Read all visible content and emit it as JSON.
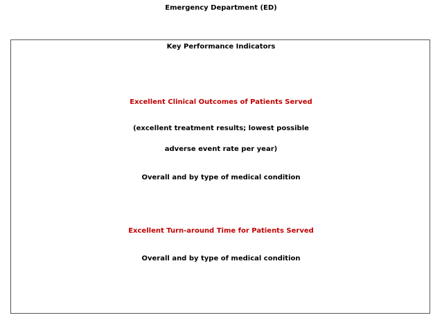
{
  "title": "Emergency Department (ED)",
  "box": {
    "heading": "Key Performance Indicators",
    "sections": [
      {
        "heading": "Excellent Clinical Outcomes of Patients Served",
        "lines": [
          "(excellent treatment results; lowest possible",
          "adverse event rate per year)",
          "Overall and by type of medical condition"
        ]
      },
      {
        "heading": "Excellent Turn-around Time for Patients Served",
        "lines": [
          "Overall and by type of medical condition"
        ]
      }
    ]
  }
}
